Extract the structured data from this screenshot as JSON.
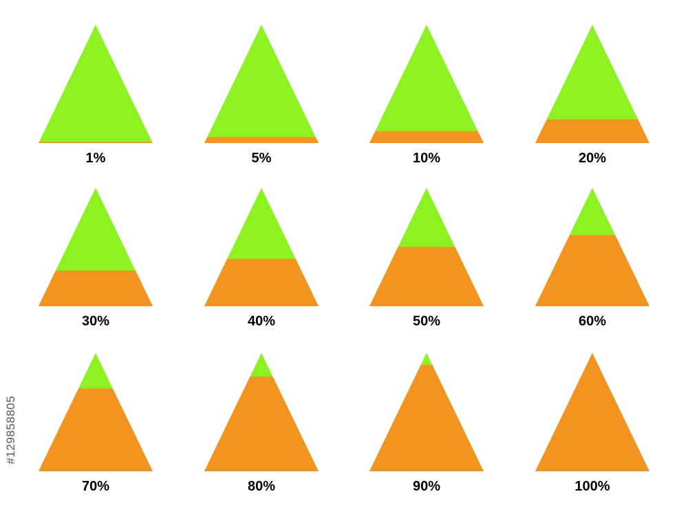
{
  "colors": {
    "empty": "#8cf222",
    "filled": "#f39322",
    "label": "#000000",
    "background": "#ffffff"
  },
  "watermark": "#129858805",
  "pyramids": [
    {
      "label": "1%",
      "fill_fraction": 0.01
    },
    {
      "label": "5%",
      "fill_fraction": 0.05
    },
    {
      "label": "10%",
      "fill_fraction": 0.1
    },
    {
      "label": "20%",
      "fill_fraction": 0.2
    },
    {
      "label": "30%",
      "fill_fraction": 0.3
    },
    {
      "label": "40%",
      "fill_fraction": 0.4
    },
    {
      "label": "50%",
      "fill_fraction": 0.5
    },
    {
      "label": "60%",
      "fill_fraction": 0.6
    },
    {
      "label": "70%",
      "fill_fraction": 0.7
    },
    {
      "label": "80%",
      "fill_fraction": 0.8
    },
    {
      "label": "90%",
      "fill_fraction": 0.9
    },
    {
      "label": "100%",
      "fill_fraction": 1.0
    }
  ]
}
